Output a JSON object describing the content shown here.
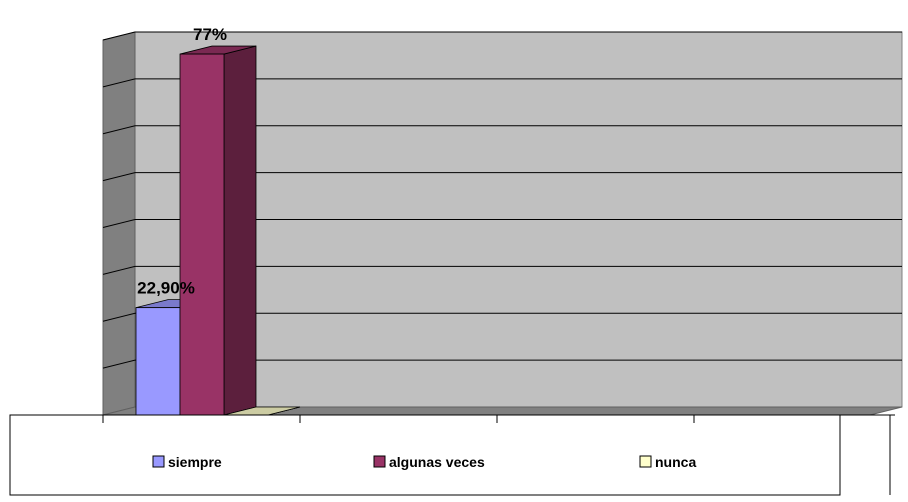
{
  "chart_data": {
    "type": "bar",
    "categories": [
      "siempre",
      "algunas veces",
      "nunca"
    ],
    "values": [
      22.9,
      77,
      0
    ],
    "data_labels": [
      "22,90%",
      "77%",
      ""
    ],
    "ylim": [
      0,
      80
    ],
    "grid": true,
    "legend_position": "bottom",
    "series_colors": [
      "#9999ff",
      "#993366",
      "#ffffcc"
    ]
  }
}
